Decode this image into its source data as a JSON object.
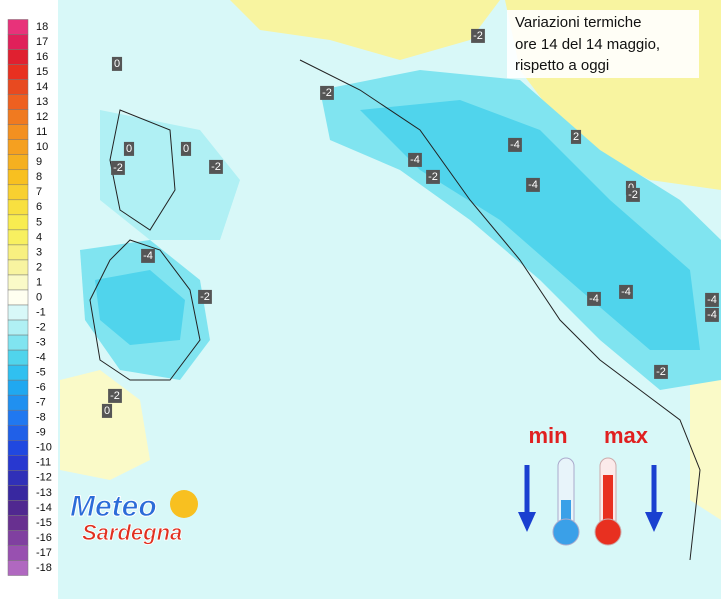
{
  "title": {
    "lines": [
      "Variazioni termiche",
      "ore 14 del 14 maggio,",
      "rispetto a oggi"
    ]
  },
  "legend": {
    "items": [
      {
        "label": "18",
        "color": "#e8327a"
      },
      {
        "label": "17",
        "color": "#e0205a"
      },
      {
        "label": "16",
        "color": "#e02030"
      },
      {
        "label": "15",
        "color": "#e83020"
      },
      {
        "label": "14",
        "color": "#e84a20"
      },
      {
        "label": "13",
        "color": "#ee6020"
      },
      {
        "label": "12",
        "color": "#f07a20"
      },
      {
        "label": "11",
        "color": "#f39020"
      },
      {
        "label": "10",
        "color": "#f5a020"
      },
      {
        "label": "9",
        "color": "#f5b020"
      },
      {
        "label": "8",
        "color": "#f8c020"
      },
      {
        "label": "7",
        "color": "#f8d030"
      },
      {
        "label": "6",
        "color": "#f8e040"
      },
      {
        "label": "5",
        "color": "#f8ec50"
      },
      {
        "label": "4",
        "color": "#f8f060"
      },
      {
        "label": "3",
        "color": "#f8f080"
      },
      {
        "label": "2",
        "color": "#f8f4a0"
      },
      {
        "label": "1",
        "color": "#fafac8"
      },
      {
        "label": "0",
        "color": "#fffff0"
      },
      {
        "label": "-1",
        "color": "#d8f8f8"
      },
      {
        "label": "-2",
        "color": "#b0f0f4"
      },
      {
        "label": "-3",
        "color": "#80e4f0"
      },
      {
        "label": "-4",
        "color": "#50d4ec"
      },
      {
        "label": "-5",
        "color": "#30c0f0"
      },
      {
        "label": "-6",
        "color": "#20a8f0"
      },
      {
        "label": "-7",
        "color": "#2090f0"
      },
      {
        "label": "-8",
        "color": "#2078f0"
      },
      {
        "label": "-9",
        "color": "#2060e8"
      },
      {
        "label": "-10",
        "color": "#2048e0"
      },
      {
        "label": "-11",
        "color": "#2838d0"
      },
      {
        "label": "-12",
        "color": "#3030b8"
      },
      {
        "label": "-13",
        "color": "#3828a0"
      },
      {
        "label": "-14",
        "color": "#502890"
      },
      {
        "label": "-15",
        "color": "#683090"
      },
      {
        "label": "-16",
        "color": "#8040a0"
      },
      {
        "label": "-17",
        "color": "#9850b0"
      },
      {
        "label": "-18",
        "color": "#b068c0"
      }
    ]
  },
  "map_labels": [
    "-2",
    "0",
    "-2",
    "0",
    "0",
    "-2",
    "-2",
    "-4",
    "-4",
    "2",
    "-2",
    "-4",
    "0",
    "-2",
    "-4",
    "-2",
    "-4",
    "-4",
    "-4",
    "-4",
    "-2",
    "-2",
    "0"
  ],
  "logo": {
    "line1": "Meteo",
    "line2": "Sardegna"
  },
  "icons": {
    "min": "min",
    "max": "max"
  }
}
